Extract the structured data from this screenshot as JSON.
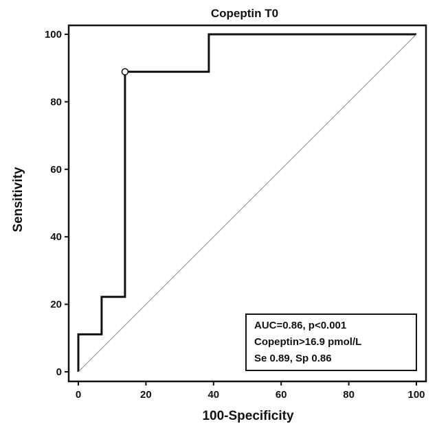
{
  "chart_data": {
    "type": "line",
    "title": "Copeptin T0",
    "xlabel": "100-Specificity",
    "ylabel": "Sensitivity",
    "xlim": [
      0,
      100
    ],
    "ylim": [
      0,
      100
    ],
    "x_ticks": [
      0,
      20,
      40,
      60,
      80,
      100
    ],
    "y_ticks": [
      0,
      20,
      40,
      60,
      80,
      100
    ],
    "x_tick_labels": [
      "0",
      "20",
      "40",
      "60",
      "80",
      "100"
    ],
    "y_tick_labels": [
      "0",
      "20",
      "40",
      "60",
      "80",
      "100"
    ],
    "grid": false,
    "series": [
      {
        "style": "step",
        "points": [
          [
            0,
            0
          ],
          [
            0,
            11.1
          ],
          [
            6.9,
            11.1
          ],
          [
            6.9,
            22.2
          ],
          [
            13.8,
            22.2
          ],
          [
            13.8,
            88.9
          ],
          [
            38.6,
            88.9
          ],
          [
            38.6,
            100
          ],
          [
            100,
            100
          ]
        ]
      },
      {
        "style": "diagonal",
        "points": [
          [
            0,
            0
          ],
          [
            100,
            100
          ]
        ]
      }
    ],
    "marker": {
      "x": 13.8,
      "y": 88.9
    },
    "annotation": {
      "placement": "bottom-right",
      "lines": [
        "AUC=0.86, p<0.001",
        "Copeptin>16.9 pmol/L",
        "Se 0.89, Sp 0.86"
      ]
    }
  }
}
